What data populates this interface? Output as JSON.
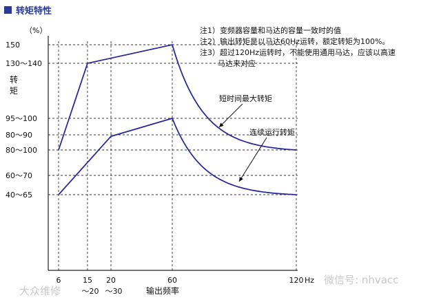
{
  "header": {
    "title": "转矩特性",
    "accent_color": "#2a3a99"
  },
  "chart_data": {
    "type": "line",
    "title": "转矩特性",
    "xlabel": "输出频率",
    "ylabel": "转矩",
    "y_unit": "（%）",
    "x_unit": "Hz",
    "x_ticks": [
      {
        "value": 6,
        "label": "6"
      },
      {
        "value": 15,
        "label": "15",
        "sub": "～20"
      },
      {
        "value": 20,
        "label": "20",
        "sub": "～30"
      },
      {
        "value": 60,
        "label": "60"
      },
      {
        "value": 120,
        "label": "120"
      }
    ],
    "y_ticks": [
      {
        "value": 40,
        "label": "40～65"
      },
      {
        "value": 60,
        "label": "60～70"
      },
      {
        "value": 80,
        "label": "80～100"
      },
      {
        "value": 90,
        "label": "80～90"
      },
      {
        "value": 98,
        "label": "95～100"
      },
      {
        "value": 130,
        "label": "130～140"
      },
      {
        "value": 150,
        "label": "150"
      }
    ],
    "series": [
      {
        "name": "短时间最大转矩",
        "color": "#2a2a99",
        "linear": [
          [
            6,
            80
          ],
          [
            15,
            130
          ],
          [
            60,
            150
          ]
        ],
        "decay": {
          "x0": 60,
          "y0": 150,
          "x1": 120,
          "y1": 80
        }
      },
      {
        "name": "连续运行转矩",
        "color": "#2a2a99",
        "linear": [
          [
            6,
            40
          ],
          [
            20,
            89
          ],
          [
            60,
            98
          ]
        ],
        "decay": {
          "x0": 60,
          "y0": 98,
          "x1": 120,
          "y1": 40
        }
      }
    ],
    "notes": [
      "注1）变频器容量和马达的容量一致时的值",
      "注2）输出转矩是以马达60Hz运转，额定转矩为100%。",
      "注3）超过120Hz运转时，不能使用通用马达，应该以高速",
      "马达来对应"
    ],
    "grid": "dashed",
    "watermarks": [
      "大众维修",
      "微信号: nhvacc"
    ]
  }
}
